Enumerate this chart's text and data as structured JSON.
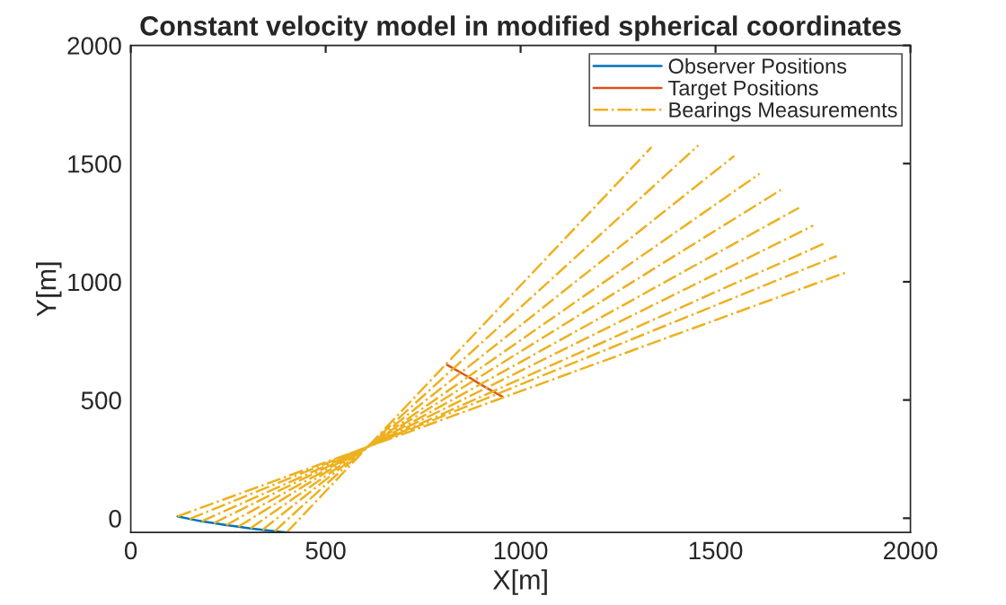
{
  "chart_data": {
    "type": "line",
    "title": "Constant velocity model in modified spherical coordinates",
    "xlabel": "X[m]",
    "ylabel": "Y[m]",
    "xlim": [
      0,
      2000
    ],
    "ylim": [
      -60,
      2000
    ],
    "xticks": [
      0,
      500,
      1000,
      1500,
      2000
    ],
    "yticks": [
      0,
      500,
      1000,
      1500,
      2000
    ],
    "grid": false,
    "legend": "top right",
    "series": [
      {
        "name": "Observer Positions",
        "color": "#0072bd",
        "line_style": "solid",
        "x": [
          400,
          369,
          338,
          307,
          276,
          245,
          213,
          182,
          151,
          120
        ],
        "values": [
          -60,
          -55,
          -49,
          -43,
          -36,
          -29,
          -21,
          -13,
          -3,
          8
        ]
      },
      {
        "name": "Target Positions",
        "color": "#d95319",
        "line_style": "solid",
        "x": [
          811,
          827,
          843,
          859,
          875,
          890,
          906,
          922,
          938,
          954
        ],
        "values": [
          649,
          634,
          619,
          604,
          589,
          573,
          558,
          543,
          528,
          513
        ]
      },
      {
        "name": "Bearings Measurements",
        "color": "#edb120",
        "line_style": "dashdot",
        "x": [
          400,
          1336,
          null,
          369,
          1456,
          null,
          338,
          1548,
          null,
          307,
          1613,
          null,
          276,
          1668,
          null,
          245,
          1714,
          null,
          213,
          1751,
          null,
          182,
          1779,
          null,
          151,
          1811,
          null,
          120,
          1839
        ],
        "values": [
          -60,
          1570,
          null,
          -55,
          1577,
          null,
          -49,
          1532,
          null,
          -43,
          1457,
          null,
          -36,
          1389,
          null,
          -29,
          1313,
          null,
          -21,
          1238,
          null,
          -13,
          1162,
          null,
          -3,
          1109,
          null,
          8,
          1042
        ]
      }
    ]
  }
}
